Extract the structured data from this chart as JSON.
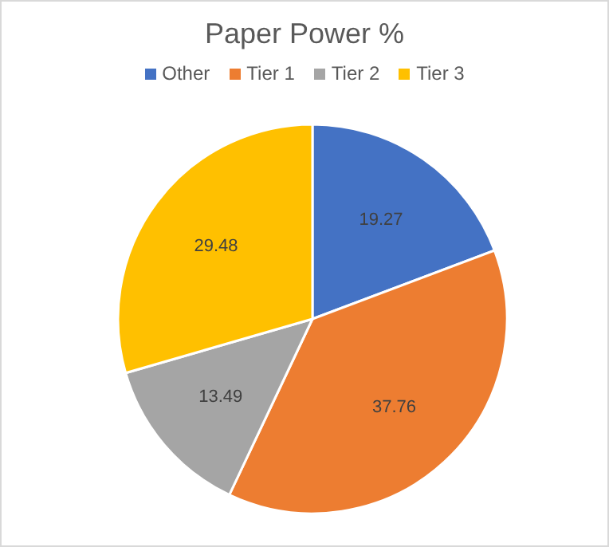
{
  "chart_data": {
    "type": "pie",
    "title": "Paper Power %",
    "categories": [
      "Other",
      "Tier 1",
      "Tier 2",
      "Tier 3"
    ],
    "values": [
      19.27,
      37.76,
      13.49,
      29.48
    ],
    "colors": [
      "#4472c4",
      "#ed7d31",
      "#a5a5a5",
      "#ffc000"
    ],
    "data_labels": true,
    "legend": "top"
  }
}
